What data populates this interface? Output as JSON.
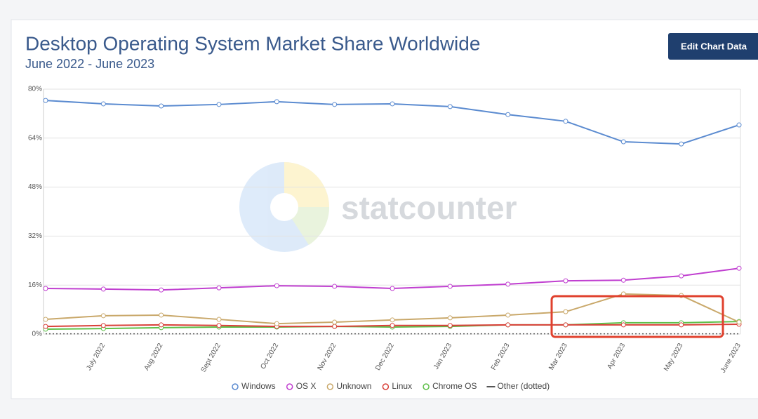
{
  "chart_data": {
    "type": "line",
    "title": "Desktop Operating System Market Share Worldwide",
    "subtitle": "June 2022 - June 2023",
    "button": "Edit Chart Data",
    "watermark": "statcounter",
    "categories": [
      null,
      "July 2022",
      "Aug 2022",
      "Sept 2022",
      "Oct 2022",
      "Nov 2022",
      "Dec 2022",
      "Jan 2023",
      "Feb 2023",
      "Mar 2023",
      "Apr 2023",
      "May 2023",
      "June 2023"
    ],
    "ylim": [
      0,
      80
    ],
    "yticks": [
      {
        "value": 0,
        "label": "0%"
      },
      {
        "value": 16,
        "label": "16%"
      },
      {
        "value": 32,
        "label": "32%"
      },
      {
        "value": 48,
        "label": "48%"
      },
      {
        "value": 64,
        "label": "64%"
      },
      {
        "value": 80,
        "label": "80%"
      }
    ],
    "grid": true,
    "legend": "bottom",
    "series": [
      {
        "name": "Windows",
        "color": "#5b8bd0",
        "values": [
          76.3,
          75.2,
          74.5,
          75.0,
          75.9,
          75.0,
          75.2,
          74.3,
          71.7,
          69.5,
          62.8,
          62.1,
          68.3
        ]
      },
      {
        "name": "OS X",
        "color": "#c03fd0",
        "values": [
          14.9,
          14.7,
          14.4,
          15.1,
          15.8,
          15.6,
          14.9,
          15.6,
          16.3,
          17.4,
          17.6,
          19.0,
          21.5
        ]
      },
      {
        "name": "Unknown",
        "color": "#c9a86a",
        "values": [
          4.8,
          6.0,
          6.2,
          4.8,
          3.4,
          3.9,
          4.6,
          5.3,
          6.2,
          7.3,
          13.1,
          12.6,
          3.9
        ]
      },
      {
        "name": "Linux",
        "color": "#d9413a",
        "values": [
          2.5,
          2.8,
          3.0,
          2.8,
          2.5,
          2.5,
          2.8,
          2.8,
          3.0,
          3.0,
          3.0,
          3.0,
          3.2
        ]
      },
      {
        "name": "Chrome OS",
        "color": "#5fc04a",
        "values": [
          1.6,
          1.8,
          2.1,
          2.3,
          2.3,
          2.5,
          2.3,
          2.5,
          3.0,
          3.0,
          3.7,
          3.7,
          4.1
        ]
      },
      {
        "name": "Other (dotted)",
        "color": "#555555",
        "dotted": true,
        "values": [
          0.1,
          0.1,
          0.1,
          0.1,
          0.1,
          0.1,
          0.1,
          0.1,
          0.1,
          0.1,
          0.1,
          0.1,
          0.1
        ]
      }
    ]
  }
}
